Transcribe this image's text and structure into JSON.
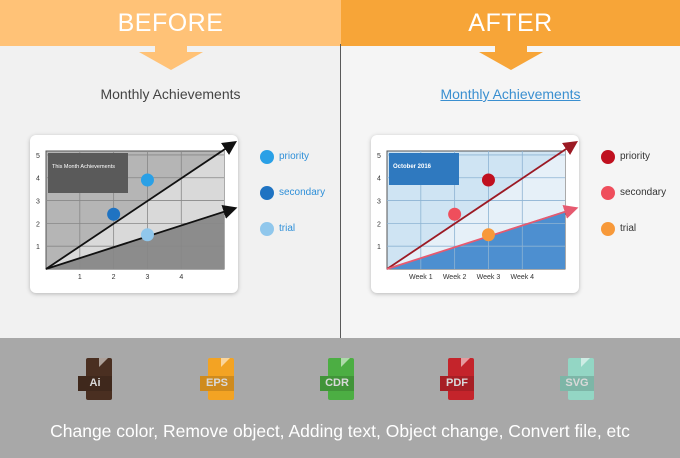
{
  "before": {
    "banner": "BEFORE",
    "title": "Monthly Achievements",
    "chart_box_label": "This Month Achievements",
    "y_ticks": [
      "1",
      "2",
      "3",
      "4",
      "5"
    ],
    "x_ticks": [
      "1",
      "2",
      "3",
      "4"
    ],
    "legend": [
      {
        "label": "priority",
        "color": "#2aa0e6"
      },
      {
        "label": "secondary",
        "color": "#1f73c2"
      },
      {
        "label": "trial",
        "color": "#90c7ec"
      }
    ]
  },
  "after": {
    "banner": "AFTER",
    "title": "Monthly Achievements",
    "chart_box_label": "October 2016",
    "y_ticks": [
      "1",
      "2",
      "3",
      "4",
      "5"
    ],
    "x_ticks": [
      "Week 1",
      "Week 2",
      "Week 3",
      "Week 4"
    ],
    "legend": [
      {
        "label": "priority",
        "color": "#c0101f"
      },
      {
        "label": "secondary",
        "color": "#ef4e5c"
      },
      {
        "label": "trial",
        "color": "#f7993a"
      }
    ]
  },
  "chart_data": [
    {
      "type": "scatter",
      "title": "Monthly Achievements",
      "categories": [
        "1",
        "2",
        "3",
        "4"
      ],
      "ylim": [
        0,
        5
      ],
      "series": [
        {
          "name": "priority",
          "x": [
            3
          ],
          "y": [
            3.9
          ]
        },
        {
          "name": "secondary",
          "x": [
            2
          ],
          "y": [
            2.4
          ]
        },
        {
          "name": "trial",
          "x": [
            3
          ],
          "y": [
            1.5
          ]
        }
      ],
      "grid": true,
      "legend": "right"
    },
    {
      "type": "scatter",
      "title": "Monthly Achievements",
      "categories": [
        "Week 1",
        "Week 2",
        "Week 3",
        "Week 4"
      ],
      "ylim": [
        0,
        5
      ],
      "series": [
        {
          "name": "priority",
          "x": [
            "Week 3"
          ],
          "y": [
            3.9
          ]
        },
        {
          "name": "secondary",
          "x": [
            "Week 2"
          ],
          "y": [
            2.4
          ]
        },
        {
          "name": "trial",
          "x": [
            "Week 3"
          ],
          "y": [
            1.5
          ]
        }
      ],
      "grid": true,
      "legend": "right"
    }
  ],
  "file_types": [
    {
      "label": "Ai",
      "color": "#4a2f21"
    },
    {
      "label": "EPS",
      "color": "#f3a323"
    },
    {
      "label": "CDR",
      "color": "#4cae43"
    },
    {
      "label": "PDF",
      "color": "#c4242b"
    },
    {
      "label": "SVG",
      "color": "#93d6c4"
    }
  ],
  "footer": "Change color, Remove object, Adding text, Object change, Convert file, etc"
}
